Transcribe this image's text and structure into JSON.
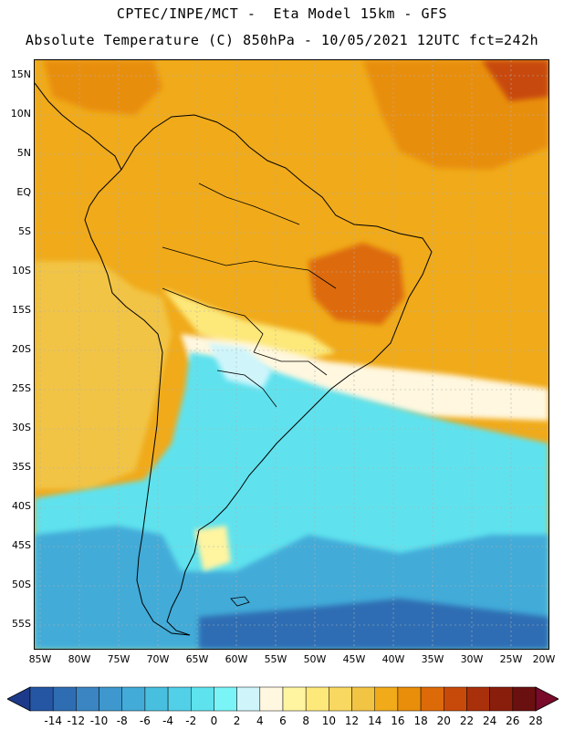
{
  "title_line1": "CPTEC/INPE/MCT -  Eta Model 15km - GFS",
  "title_line2": "Absolute Temperature (C) 850hPa - 10/05/2021 12UTC fct=242h",
  "lat_labels": [
    "15N",
    "10N",
    "5N",
    "EQ",
    "5S",
    "10S",
    "15S",
    "20S",
    "25S",
    "30S",
    "35S",
    "40S",
    "45S",
    "50S",
    "55S"
  ],
  "lon_labels": [
    "85W",
    "80W",
    "75W",
    "70W",
    "65W",
    "60W",
    "55W",
    "50W",
    "45W",
    "40W",
    "35W",
    "30W",
    "25W",
    "20W"
  ],
  "colorbar": {
    "labels": [
      "-14",
      "-12",
      "-10",
      "-8",
      "-6",
      "-4",
      "-2",
      "0",
      "2",
      "4",
      "6",
      "8",
      "10",
      "12",
      "14",
      "16",
      "18",
      "20",
      "22",
      "24",
      "26",
      "28"
    ],
    "colors": [
      "#1d3a8a",
      "#2456a3",
      "#2f6db3",
      "#3a85c2",
      "#3e98ce",
      "#43abd8",
      "#49bfe0",
      "#52d0e8",
      "#5ee2ee",
      "#7af4f6",
      "#cff5fb",
      "#fff7df",
      "#fff4a0",
      "#fde87a",
      "#f8d860",
      "#f2c444",
      "#f0aa1a",
      "#e88e0a",
      "#dd6a08",
      "#c84a0a",
      "#a8300a",
      "#8a1e0c",
      "#6b1010",
      "#7a0a2a"
    ]
  },
  "map_colors": {
    "ocean_warm": "#f0aa1a",
    "ocean_mid": "#f2c444",
    "cold_deep": "#2f6db3",
    "cold_mid": "#43abd8",
    "cold_light": "#5ee2ee",
    "hot": "#dd6a08",
    "outline": "#000000"
  }
}
